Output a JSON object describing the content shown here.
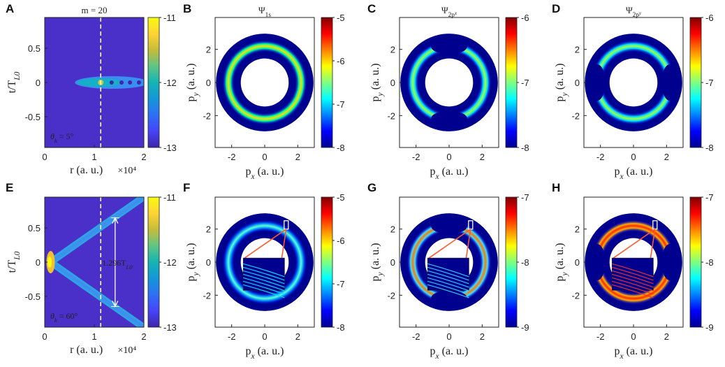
{
  "figure": {
    "colors": {
      "jet": [
        "#00008f",
        "#0000ff",
        "#0080ff",
        "#00ffff",
        "#80ff80",
        "#ffff00",
        "#ff8000",
        "#ff0000",
        "#800000"
      ],
      "parula": [
        "#3e26a8",
        "#4743f8",
        "#2d70f4",
        "#1597d8",
        "#14b4b4",
        "#5fc584",
        "#c6bc3a",
        "#fdd433",
        "#f9fb0e"
      ],
      "annot": "#ff5a2e"
    }
  },
  "chart_data": [
    {
      "panel": "A",
      "type": "heatmap",
      "colormap": "parula",
      "title": "m = 20",
      "xlabel": "r (a. u.)",
      "x_exponent": "×10⁴",
      "ylabel": "t/T_L0",
      "xlim": [
        0,
        2
      ],
      "ylim": [
        -0.95,
        0.95
      ],
      "xticks": [
        "0",
        "1",
        "2"
      ],
      "yticks": [
        "-0.5",
        "0",
        "0.5"
      ],
      "colorbar": {
        "range": [
          -13,
          -11
        ],
        "ticks": [
          "-11",
          "-12",
          "-13"
        ]
      },
      "annotation": "θk = 5°",
      "dashed_x": 1.13,
      "feature": "plume along t = 0 starting near r = 0.9, bright near r ≈ 1.13, with periodic dots to r = 2"
    },
    {
      "panel": "B",
      "type": "heatmap",
      "colormap": "jet",
      "title": "Ψ1s",
      "xlabel": "px (a. u.)",
      "ylabel": "py (a. u.)",
      "xlim": [
        -3,
        3
      ],
      "ylim": [
        -3,
        3
      ],
      "xticks": [
        "-2",
        "0",
        "2"
      ],
      "yticks": [
        "-2",
        "0",
        "2"
      ],
      "colorbar": {
        "range": [
          -8,
          -5
        ],
        "ticks": [
          "-5",
          "-6",
          "-7",
          "-8"
        ]
      },
      "ring_radius": 2.2,
      "ring_shape": "uniform"
    },
    {
      "panel": "C",
      "type": "heatmap",
      "colormap": "jet",
      "title": "Ψ2px",
      "xlabel": "px (a. u.)",
      "ylabel": "py (a. u.)",
      "xlim": [
        -3,
        3
      ],
      "ylim": [
        -3,
        3
      ],
      "xticks": [
        "-2",
        "0",
        "2"
      ],
      "yticks": [
        "-2",
        "0",
        "2"
      ],
      "colorbar": {
        "range": [
          -8,
          -6
        ],
        "ticks": [
          "-6",
          "-7",
          "-8"
        ]
      },
      "ring_radius": 2.2,
      "ring_shape": "strongest along px"
    },
    {
      "panel": "D",
      "type": "heatmap",
      "colormap": "jet",
      "title": "Ψ2py",
      "xlabel": "px (a. u.)",
      "ylabel": "py (a. u.)",
      "xlim": [
        -3,
        3
      ],
      "ylim": [
        -3,
        3
      ],
      "xticks": [
        "-2",
        "0",
        "2"
      ],
      "yticks": [
        "-2",
        "0",
        "2"
      ],
      "colorbar": {
        "range": [
          -8,
          -6
        ],
        "ticks": [
          "-6",
          "-7",
          "-8"
        ]
      },
      "ring_radius": 2.2,
      "ring_shape": "strongest along py"
    },
    {
      "panel": "E",
      "type": "heatmap",
      "colormap": "parula",
      "xlabel": "r (a. u.)",
      "x_exponent": "×10⁴",
      "ylabel": "t/T_L0",
      "xlim": [
        0,
        2
      ],
      "ylim": [
        -0.95,
        0.95
      ],
      "xticks": [
        "0",
        "1",
        "2"
      ],
      "yticks": [
        "-0.5",
        "0",
        "0.5"
      ],
      "colorbar": {
        "range": [
          -13,
          -11
        ],
        "ticks": [
          "-11",
          "-12",
          "-13"
        ]
      },
      "annotation": "θk = 60°",
      "dashed_x": 1.13,
      "interval_label": "1.296T_L0",
      "interval_t": [
        -0.648,
        0.648
      ],
      "feature": "V-shaped branches from (r=0.1, t=0) reaching r=2 at t=±0.95"
    },
    {
      "panel": "F",
      "type": "heatmap",
      "colormap": "jet",
      "xlabel": "px (a. u.)",
      "ylabel": "py (a. u.)",
      "xlim": [
        -3,
        3
      ],
      "ylim": [
        -3,
        3
      ],
      "xticks": [
        "-2",
        "0",
        "2"
      ],
      "yticks": [
        "-2",
        "0",
        "2"
      ],
      "colorbar": {
        "range": [
          -8,
          -5
        ],
        "ticks": [
          "-5",
          "-6",
          "-7",
          "-8"
        ]
      },
      "ring_radius": 2.2,
      "ring_shape": "fringed",
      "inset": true
    },
    {
      "panel": "G",
      "type": "heatmap",
      "colormap": "jet",
      "xlabel": "px (a. u.)",
      "ylabel": "py (a. u.)",
      "xlim": [
        -3,
        3
      ],
      "ylim": [
        -3,
        3
      ],
      "xticks": [
        "-2",
        "0",
        "2"
      ],
      "yticks": [
        "-2",
        "0",
        "2"
      ],
      "colorbar": {
        "range": [
          -9,
          -7
        ],
        "ticks": [
          "-7",
          "-8",
          "-9"
        ]
      },
      "ring_radius": 2.2,
      "ring_shape": "fringed strongest along px",
      "inset": true
    },
    {
      "panel": "H",
      "type": "heatmap",
      "colormap": "jet",
      "xlabel": "px (a. u.)",
      "ylabel": "py (a. u.)",
      "xlim": [
        -3,
        3
      ],
      "ylim": [
        -3,
        3
      ],
      "xticks": [
        "-2",
        "0",
        "2"
      ],
      "yticks": [
        "-2",
        "0",
        "2"
      ],
      "colorbar": {
        "range": [
          -9,
          -7
        ],
        "ticks": [
          "-7",
          "-8",
          "-9"
        ]
      },
      "ring_radius": 2.2,
      "ring_shape": "fringed strongest along py",
      "inset": true
    }
  ]
}
